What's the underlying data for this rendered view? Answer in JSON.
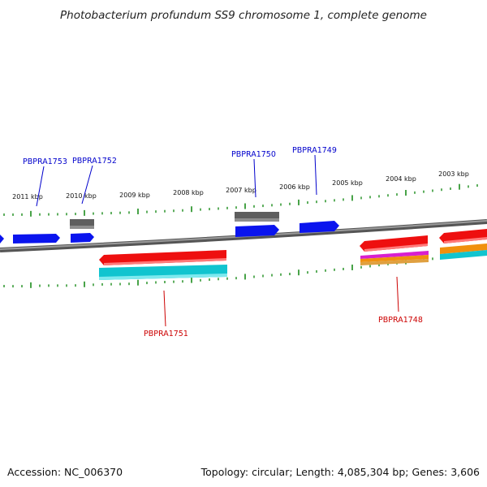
{
  "title": "Photobacterium profundum SS9 chromosome 1, complete genome",
  "footer": {
    "accession_prefix": "Accession:",
    "accession": "NC_006370",
    "topology": "Topology: circular;",
    "length": "Length: 4,085,304 bp;",
    "genes": "Genes: 3,606"
  },
  "colors": {
    "backbone": "#7f7f7f",
    "tick": "#1a8c1a",
    "forward_label": "#0000cc",
    "reverse_label": "#cc0000",
    "blue": "#0a14ee",
    "gray": "#5e5e5e",
    "red": "#ee0f0f",
    "cyan": "#11c4cf",
    "orange": "#f0900e",
    "magenta": "#d81fcf"
  },
  "scale_labels": [
    "2011 kbp",
    "2010 kbp",
    "2009 kbp",
    "2008 kbp",
    "2007 kbp",
    "2006 kbp",
    "2005 kbp",
    "2004 kbp",
    "2003 kbp"
  ],
  "gene_labels": {
    "forward": [
      "PBPRA1753",
      "PBPRA1752",
      "PBPRA1750",
      "PBPRA1749"
    ],
    "reverse": [
      "PBPRA1751",
      "PBPRA1748"
    ]
  }
}
